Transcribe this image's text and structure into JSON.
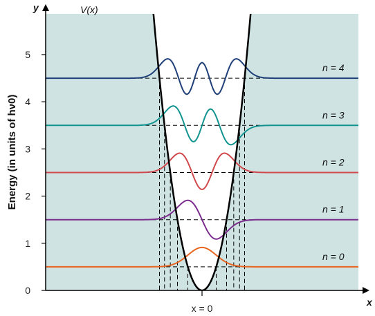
{
  "chart_data": {
    "type": "line",
    "ylabel": "Energy (in units of hν0)",
    "xlabel": "x",
    "y_axis_name": "y",
    "ylim": [
      0,
      5.5
    ],
    "yticks": [
      "0",
      "1",
      "2",
      "3",
      "4",
      "5"
    ],
    "x_marker_label": "x = 0",
    "potential_label": "V(x)",
    "background_color": "#cfe3e3",
    "levels": [
      {
        "label": "n = 0",
        "n": 0,
        "energy": 0.5,
        "color": "#e8641e"
      },
      {
        "label": "n = 1",
        "n": 1,
        "energy": 1.5,
        "color": "#7b2d8e"
      },
      {
        "label": "n = 2",
        "n": 2,
        "energy": 2.5,
        "color": "#d0484b"
      },
      {
        "label": "n = 3",
        "n": 3,
        "energy": 3.5,
        "color": "#11938f"
      },
      {
        "label": "n = 4",
        "n": 4,
        "energy": 4.5,
        "color": "#1e3f78"
      }
    ],
    "grid": false
  }
}
